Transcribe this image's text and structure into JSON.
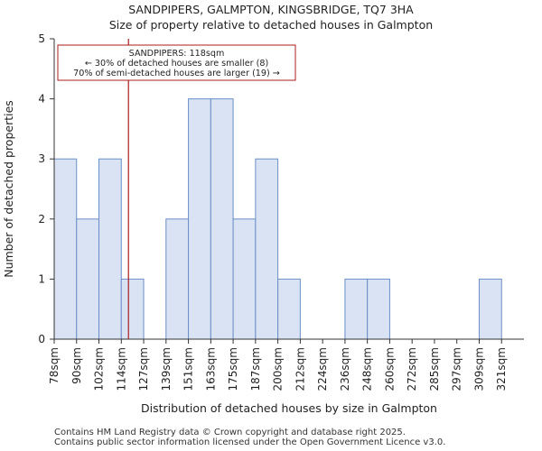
{
  "title_line1": "SANDPIPERS, GALMPTON, KINGSBRIDGE, TQ7 3HA",
  "title_line2": "Size of property relative to detached houses in Galmpton",
  "footer_line1": "Contains HM Land Registry data © Crown copyright and database right 2025.",
  "footer_line2": "Contains public sector information licensed under the Open Government Licence v3.0.",
  "chart_data": {
    "type": "bar",
    "title": "Size of property relative to detached houses in Galmpton",
    "xlabel": "Distribution of detached houses by size in Galmpton",
    "ylabel": "Number of detached properties",
    "categories": [
      "78sqm",
      "90sqm",
      "102sqm",
      "114sqm",
      "127sqm",
      "139sqm",
      "151sqm",
      "163sqm",
      "175sqm",
      "187sqm",
      "200sqm",
      "212sqm",
      "224sqm",
      "236sqm",
      "248sqm",
      "260sqm",
      "272sqm",
      "285sqm",
      "297sqm",
      "309sqm",
      "321sqm"
    ],
    "values": [
      3,
      2,
      3,
      1,
      0,
      2,
      4,
      4,
      2,
      3,
      1,
      0,
      0,
      1,
      1,
      0,
      0,
      0,
      0,
      1,
      0
    ],
    "ylim": [
      0,
      5
    ],
    "yticks": [
      0,
      1,
      2,
      3,
      4,
      5
    ],
    "grid": false,
    "bar_color": "#dae3f3",
    "bar_edge_color": "#6b8fc7",
    "marker": {
      "value_sqm": 118,
      "position_bins": 3.32,
      "color": "#aa1c1c",
      "annotation": [
        "SANDPIPERS: 118sqm",
        "← 30% of detached houses are smaller (8)",
        "70% of semi-detached houses are larger (19) →"
      ],
      "annotation_border_color": "#aa1c1c"
    }
  }
}
